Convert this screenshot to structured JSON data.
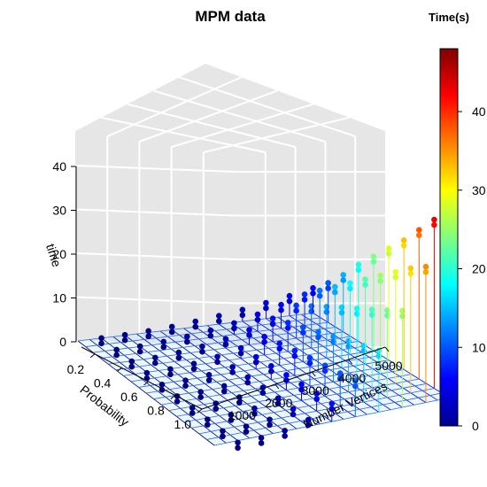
{
  "chart_data": {
    "type": "scatter3d",
    "title": "MPM  data",
    "xlabel": "Number Vertices",
    "ylabel": "Probability",
    "zlabel": "time",
    "x_ticks": [
      "1000",
      "2000",
      "3000",
      "4000",
      "5000"
    ],
    "y_ticks": [
      "0.2",
      "0.4",
      "0.6",
      "0.8",
      "1.0"
    ],
    "z_ticks": [
      "0",
      "10",
      "20",
      "30",
      "40"
    ],
    "xlim": [
      0,
      5000
    ],
    "ylim": [
      0.1,
      1.0
    ],
    "zlim": [
      0,
      48
    ],
    "x_values": [
      500,
      1000,
      1500,
      2000,
      2500,
      3000,
      3500,
      4000,
      4500,
      5000
    ],
    "y_values": [
      0.1,
      0.2,
      0.3,
      0.4,
      0.5,
      0.6,
      0.7,
      0.8,
      0.9,
      1.0
    ],
    "time_matrix": [
      [
        0.05,
        0.2,
        0.5,
        0.9,
        1.5,
        2.2,
        3.0,
        4.0,
        5.0,
        6.2
      ],
      [
        0.05,
        0.25,
        0.7,
        1.3,
        2.1,
        3.2,
        4.6,
        6.2,
        8.0,
        10.0
      ],
      [
        0.05,
        0.3,
        0.9,
        1.7,
        2.8,
        4.3,
        6.3,
        8.7,
        11.5,
        14.5
      ],
      [
        0.05,
        0.35,
        1.0,
        2.0,
        3.4,
        5.4,
        8.0,
        11.2,
        15.0,
        19.5
      ],
      [
        0.05,
        0.4,
        1.1,
        2.3,
        4.0,
        6.5,
        9.6,
        13.7,
        18.5,
        24.0
      ],
      [
        0.05,
        0.45,
        1.2,
        2.6,
        4.6,
        7.5,
        11.2,
        16.2,
        22.0,
        28.5
      ],
      [
        0.05,
        0.45,
        1.3,
        2.9,
        5.2,
        8.5,
        12.8,
        18.6,
        25.5,
        33.0
      ],
      [
        0.05,
        0.5,
        1.4,
        3.1,
        5.7,
        9.4,
        14.4,
        21.0,
        29.0,
        38.0
      ],
      [
        0.05,
        0.5,
        1.5,
        3.3,
        6.2,
        10.3,
        16.0,
        23.5,
        32.5,
        43.0
      ],
      [
        0.05,
        0.55,
        1.6,
        3.5,
        6.6,
        11.2,
        17.5,
        26.0,
        35.5,
        48.0
      ]
    ],
    "plane_level": 5,
    "colorbar": {
      "title": "Time(s)",
      "min": 0,
      "max": 48,
      "ticks": [
        "0",
        "10",
        "20",
        "30",
        "40"
      ],
      "palette": "jet"
    },
    "panel_color": "#e6e6e6",
    "grid": true
  }
}
